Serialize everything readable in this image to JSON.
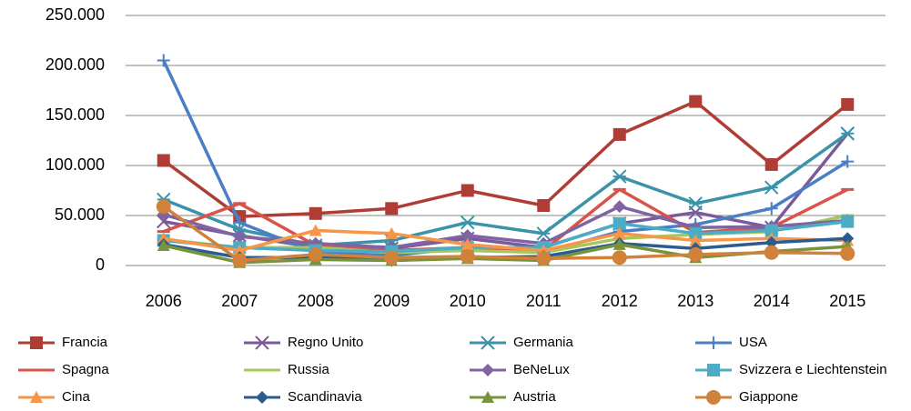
{
  "chart_data": {
    "type": "line",
    "categories": [
      "2006",
      "2007",
      "2008",
      "2009",
      "2010",
      "2011",
      "2012",
      "2013",
      "2014",
      "2015"
    ],
    "ylim": [
      0,
      250000
    ],
    "yticks": [
      0,
      {
        "value": 50000,
        "label": "50.000"
      },
      {
        "value": 100000,
        "label": "100.000"
      },
      {
        "value": 150000,
        "label": "150.000"
      },
      {
        "value": 200000,
        "label": "200.000"
      },
      {
        "value": 250000,
        "label": "250.000"
      }
    ],
    "grid": true,
    "legend": "bottom",
    "series": [
      {
        "name": "Francia",
        "color": "#b03c36",
        "marker": "square",
        "values": [
          105000,
          49000,
          52000,
          57000,
          75000,
          60000,
          131000,
          164000,
          101000,
          161000
        ]
      },
      {
        "name": "Regno Unito",
        "color": "#7a5a9a",
        "marker": "x",
        "values": [
          44000,
          30000,
          18000,
          17000,
          27000,
          18000,
          42000,
          53000,
          38000,
          132000
        ]
      },
      {
        "name": "Germania",
        "color": "#3a93a8",
        "marker": "star",
        "values": [
          66000,
          36000,
          20000,
          25000,
          43000,
          32000,
          89000,
          62000,
          78000,
          132000
        ]
      },
      {
        "name": "USA",
        "color": "#4a7fc5",
        "marker": "plus",
        "values": [
          205000,
          43000,
          13000,
          10000,
          18000,
          13000,
          34000,
          41000,
          57000,
          104000
        ]
      },
      {
        "name": "Spagna",
        "color": "#d9534a",
        "marker": "dash",
        "values": [
          34000,
          62000,
          20000,
          15000,
          18000,
          15000,
          76000,
          33000,
          38000,
          76000
        ]
      },
      {
        "name": "Russia",
        "color": "#a6c85a",
        "marker": "dash",
        "values": [
          26000,
          18000,
          18000,
          13000,
          15000,
          13000,
          27000,
          31000,
          34000,
          50000
        ]
      },
      {
        "name": "BeNeLux",
        "color": "#8064a2",
        "marker": "diamond",
        "values": [
          51000,
          29000,
          22000,
          18000,
          30000,
          22000,
          59000,
          38000,
          39000,
          45000
        ]
      },
      {
        "name": "Svizzera e Liechtenstein",
        "color": "#4bacc6",
        "marker": "square",
        "values": [
          25000,
          18000,
          15000,
          14000,
          18000,
          18000,
          42000,
          32000,
          35000,
          44000
        ]
      },
      {
        "name": "Cina",
        "color": "#f79646",
        "marker": "triangle",
        "values": [
          27000,
          15000,
          35000,
          32000,
          21000,
          15000,
          32000,
          25000,
          27000,
          25000
        ]
      },
      {
        "name": "Scandinavia",
        "color": "#2c5c8f",
        "marker": "diamond",
        "values": [
          21000,
          8000,
          8000,
          5000,
          8000,
          9000,
          22000,
          17000,
          23000,
          27000
        ]
      },
      {
        "name": "Austria",
        "color": "#77933c",
        "marker": "triangle",
        "values": [
          20000,
          3000,
          6000,
          5000,
          7000,
          5000,
          21000,
          8000,
          14000,
          19000
        ]
      },
      {
        "name": "Giappone",
        "color": "#d0823a",
        "marker": "circle",
        "values": [
          59000,
          5000,
          11000,
          8000,
          9000,
          7000,
          8000,
          11000,
          13000,
          12000
        ]
      }
    ]
  }
}
